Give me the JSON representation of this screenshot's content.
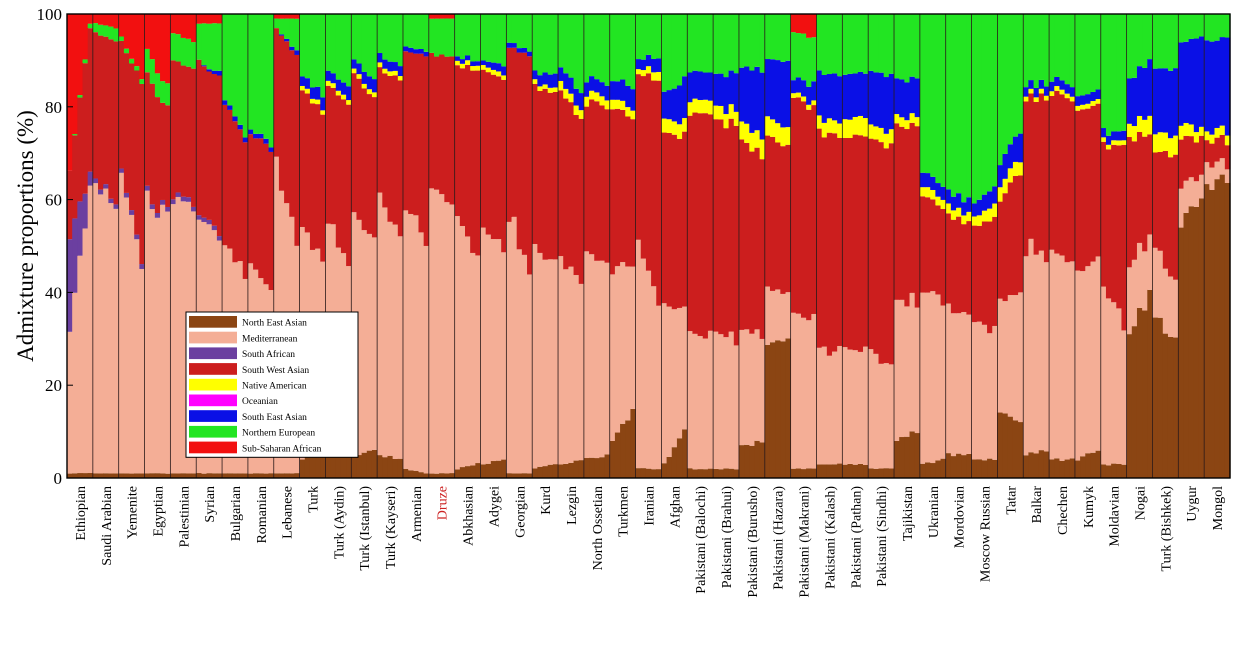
{
  "chart_data": {
    "type": "stacked-bar",
    "ylabel": "Admixture proportions (%)",
    "ylim": [
      0,
      100
    ],
    "yticks": [
      0,
      20,
      40,
      60,
      80,
      100
    ],
    "legend_position": "lower-left",
    "components": [
      {
        "name": "North East Asian",
        "color": "#8B4513"
      },
      {
        "name": "Mediterranean",
        "color": "#F4AE96"
      },
      {
        "name": "South African",
        "color": "#6B3FA0"
      },
      {
        "name": "South West Asian",
        "color": "#CC1E1E"
      },
      {
        "name": "Native American",
        "color": "#FFFF00"
      },
      {
        "name": "Oceanian",
        "color": "#FF00FF"
      },
      {
        "name": "South East Asian",
        "color": "#0A10E6"
      },
      {
        "name": "Northern European",
        "color": "#22E522"
      },
      {
        "name": "Sub-Saharan African",
        "color": "#F21010"
      }
    ],
    "populations": [
      {
        "name": "Ethiopian",
        "label_color": "#000000",
        "start": [
          1,
          30,
          20,
          15,
          0,
          0,
          0,
          0,
          34
        ],
        "end": [
          1,
          63,
          3,
          30,
          0,
          0,
          0,
          1,
          2
        ]
      },
      {
        "name": "Saudi Arabian",
        "label_color": "#000000",
        "start": [
          1,
          63,
          1,
          31,
          0,
          0,
          0,
          2,
          2
        ],
        "end": [
          1,
          58,
          1,
          34,
          0,
          0,
          0,
          3,
          3
        ]
      },
      {
        "name": "Yemenite",
        "label_color": "#000000",
        "start": [
          1,
          64,
          1,
          28,
          0,
          0,
          0,
          1,
          5
        ],
        "end": [
          1,
          45,
          1,
          38,
          0,
          0,
          0,
          1,
          14
        ]
      },
      {
        "name": "Egyptian",
        "label_color": "#000000",
        "start": [
          1,
          60,
          1,
          25,
          0,
          0,
          0,
          5,
          8
        ],
        "end": [
          1,
          55,
          1,
          22,
          0,
          0,
          0,
          5,
          16
        ]
      },
      {
        "name": "Palestinian",
        "label_color": "#000000",
        "start": [
          1,
          58,
          1,
          30,
          0,
          0,
          0,
          6,
          4
        ],
        "end": [
          1,
          58,
          1,
          28,
          0,
          0,
          0,
          6,
          6
        ]
      },
      {
        "name": "Syrian",
        "label_color": "#000000",
        "start": [
          1,
          55,
          1,
          33,
          0,
          0,
          0,
          8,
          2
        ],
        "end": [
          1,
          50,
          1,
          34,
          0,
          0,
          1,
          11,
          2
        ]
      },
      {
        "name": "Bulgarian",
        "label_color": "#000000",
        "start": [
          1,
          50,
          0,
          30,
          0,
          0,
          1,
          18,
          0
        ],
        "end": [
          1,
          42,
          0,
          30,
          0,
          0,
          1,
          26,
          0
        ]
      },
      {
        "name": "Romanian",
        "label_color": "#000000",
        "start": [
          1,
          45,
          0,
          28,
          0,
          0,
          1,
          25,
          0
        ],
        "end": [
          1,
          40,
          0,
          30,
          0,
          0,
          1,
          28,
          0
        ]
      },
      {
        "name": "Lebanese",
        "label_color": "#000000",
        "start": [
          1,
          68,
          0,
          28,
          0,
          0,
          0,
          2,
          1
        ],
        "end": [
          1,
          50,
          0,
          40,
          0,
          0,
          1,
          7,
          1
        ]
      },
      {
        "name": "Turk",
        "label_color": "#000000",
        "start": [
          4,
          50,
          0,
          30,
          1,
          0,
          2,
          13,
          0
        ],
        "end": [
          6,
          40,
          0,
          32,
          1,
          0,
          3,
          18,
          0
        ]
      },
      {
        "name": "Turk (Aydin)",
        "label_color": "#000000",
        "start": [
          5,
          50,
          0,
          30,
          1,
          0,
          2,
          12,
          0
        ],
        "end": [
          7,
          40,
          0,
          33,
          1,
          0,
          3,
          16,
          0
        ]
      },
      {
        "name": "Turk (Istanbul)",
        "label_color": "#000000",
        "start": [
          5,
          52,
          0,
          30,
          1,
          0,
          2,
          10,
          0
        ],
        "end": [
          6,
          45,
          0,
          31,
          1,
          0,
          3,
          14,
          0
        ]
      },
      {
        "name": "Turk (Kayseri)",
        "label_color": "#000000",
        "start": [
          5,
          55,
          0,
          28,
          1,
          0,
          2,
          9,
          0
        ],
        "end": [
          4,
          48,
          0,
          34,
          1,
          0,
          2,
          11,
          0
        ]
      },
      {
        "name": "Armenian",
        "label_color": "#000000",
        "start": [
          2,
          58,
          0,
          32,
          0,
          0,
          1,
          7,
          0
        ],
        "end": [
          1,
          48,
          0,
          42,
          0,
          0,
          1,
          8,
          0
        ]
      },
      {
        "name": "Druze",
        "label_color": "#CC2222",
        "start": [
          1,
          60,
          0,
          30,
          0,
          0,
          0,
          8,
          1
        ],
        "end": [
          1,
          58,
          0,
          32,
          0,
          0,
          0,
          8,
          1
        ]
      },
      {
        "name": "Abkhasian",
        "label_color": "#000000",
        "start": [
          2,
          55,
          0,
          32,
          1,
          0,
          1,
          9,
          0
        ],
        "end": [
          3,
          45,
          0,
          40,
          1,
          0,
          1,
          10,
          0
        ]
      },
      {
        "name": "Adygei",
        "label_color": "#000000",
        "start": [
          3,
          50,
          0,
          35,
          1,
          0,
          1,
          10,
          0
        ],
        "end": [
          4,
          45,
          0,
          37,
          1,
          0,
          2,
          11,
          0
        ]
      },
      {
        "name": "Georgian",
        "label_color": "#000000",
        "start": [
          1,
          55,
          0,
          37,
          0,
          0,
          1,
          6,
          0
        ],
        "end": [
          1,
          45,
          0,
          45,
          0,
          0,
          1,
          8,
          0
        ]
      },
      {
        "name": "Kurd",
        "label_color": "#000000",
        "start": [
          2,
          48,
          0,
          35,
          1,
          0,
          2,
          12,
          0
        ],
        "end": [
          3,
          42,
          0,
          38,
          1,
          0,
          3,
          13,
          0
        ]
      },
      {
        "name": "Lezgin",
        "label_color": "#000000",
        "start": [
          3,
          45,
          0,
          35,
          2,
          0,
          3,
          12,
          0
        ],
        "end": [
          4,
          38,
          0,
          35,
          2,
          0,
          4,
          17,
          0
        ]
      },
      {
        "name": "North Ossetian",
        "label_color": "#000000",
        "start": [
          4,
          45,
          0,
          32,
          2,
          0,
          3,
          14,
          0
        ],
        "end": [
          5,
          42,
          0,
          33,
          2,
          0,
          3,
          15,
          0
        ]
      },
      {
        "name": "Turkmen",
        "label_color": "#000000",
        "start": [
          8,
          38,
          0,
          34,
          2,
          0,
          4,
          14,
          0
        ],
        "end": [
          15,
          30,
          0,
          32,
          2,
          0,
          5,
          16,
          0
        ]
      },
      {
        "name": "Iranian",
        "label_color": "#000000",
        "start": [
          2,
          50,
          0,
          36,
          1,
          0,
          2,
          9,
          0
        ],
        "end": [
          2,
          35,
          0,
          48,
          2,
          0,
          3,
          10,
          0
        ]
      },
      {
        "name": "Afghan",
        "label_color": "#000000",
        "start": [
          3,
          35,
          0,
          36,
          3,
          0,
          6,
          17,
          0
        ],
        "end": [
          10,
          28,
          0,
          36,
          3,
          0,
          9,
          14,
          0
        ]
      },
      {
        "name": "Pakistani (Balochi)",
        "label_color": "#000000",
        "start": [
          2,
          30,
          0,
          46,
          3,
          0,
          6,
          13,
          0
        ],
        "end": [
          2,
          28,
          0,
          48,
          3,
          0,
          6,
          13,
          0
        ]
      },
      {
        "name": "Pakistani (Brahui)",
        "label_color": "#000000",
        "start": [
          2,
          30,
          0,
          45,
          3,
          0,
          7,
          13,
          0
        ],
        "end": [
          2,
          28,
          0,
          46,
          3,
          0,
          8,
          13,
          0
        ]
      },
      {
        "name": "Pakistani (Burusho)",
        "label_color": "#000000",
        "start": [
          7,
          25,
          0,
          40,
          4,
          0,
          12,
          12,
          0
        ],
        "end": [
          8,
          22,
          0,
          40,
          4,
          0,
          14,
          12,
          0
        ]
      },
      {
        "name": "Pakistani (Hazara)",
        "label_color": "#000000",
        "start": [
          30,
          12,
          0,
          32,
          4,
          0,
          12,
          10,
          0
        ],
        "end": [
          30,
          10,
          0,
          32,
          4,
          0,
          14,
          10,
          0
        ]
      },
      {
        "name": "Pakistani (Makrani)",
        "label_color": "#000000",
        "start": [
          2,
          35,
          0,
          45,
          1,
          0,
          3,
          10,
          4
        ],
        "end": [
          2,
          32,
          0,
          46,
          1,
          0,
          4,
          10,
          5
        ]
      },
      {
        "name": "Pakistani (Kalash)",
        "label_color": "#000000",
        "start": [
          3,
          25,
          0,
          46,
          3,
          0,
          10,
          13,
          0
        ],
        "end": [
          3,
          25,
          0,
          46,
          3,
          0,
          10,
          13,
          0
        ]
      },
      {
        "name": "Pakistani (Pathan)",
        "label_color": "#000000",
        "start": [
          3,
          25,
          0,
          45,
          4,
          0,
          10,
          13,
          0
        ],
        "end": [
          3,
          25,
          0,
          45,
          4,
          0,
          10,
          13,
          0
        ]
      },
      {
        "name": "Pakistani (Sindhi)",
        "label_color": "#000000",
        "start": [
          2,
          25,
          0,
          46,
          3,
          0,
          12,
          12,
          0
        ],
        "end": [
          2,
          22,
          0,
          48,
          3,
          0,
          12,
          13,
          0
        ]
      },
      {
        "name": "Tajikistan",
        "label_color": "#000000",
        "start": [
          8,
          30,
          0,
          38,
          2,
          0,
          8,
          14,
          0
        ],
        "end": [
          10,
          28,
          0,
          38,
          2,
          0,
          8,
          14,
          0
        ]
      },
      {
        "name": "Ukranian",
        "label_color": "#000000",
        "start": [
          3,
          38,
          0,
          20,
          2,
          0,
          3,
          34,
          0
        ],
        "end": [
          4,
          35,
          0,
          20,
          2,
          0,
          3,
          36,
          0
        ]
      },
      {
        "name": "Mordovian",
        "label_color": "#000000",
        "start": [
          5,
          32,
          0,
          20,
          2,
          0,
          3,
          38,
          0
        ],
        "end": [
          5,
          30,
          0,
          20,
          2,
          0,
          3,
          40,
          0
        ]
      },
      {
        "name": "Moscow Russian",
        "label_color": "#000000",
        "start": [
          4,
          30,
          0,
          20,
          2,
          0,
          3,
          41,
          0
        ],
        "end": [
          4,
          28,
          0,
          24,
          3,
          0,
          4,
          37,
          0
        ]
      },
      {
        "name": "Tatar",
        "label_color": "#000000",
        "start": [
          14,
          25,
          0,
          22,
          3,
          0,
          5,
          31,
          0
        ],
        "end": [
          12,
          28,
          0,
          26,
          3,
          0,
          6,
          25,
          0
        ]
      },
      {
        "name": "Balkar",
        "label_color": "#000000",
        "start": [
          5,
          45,
          0,
          32,
          1,
          0,
          2,
          15,
          0
        ],
        "end": [
          6,
          42,
          0,
          34,
          1,
          0,
          2,
          15,
          0
        ]
      },
      {
        "name": "Chechen",
        "label_color": "#000000",
        "start": [
          4,
          45,
          0,
          34,
          1,
          0,
          2,
          14,
          0
        ],
        "end": [
          4,
          42,
          0,
          36,
          1,
          0,
          2,
          15,
          0
        ]
      },
      {
        "name": "Kumyk",
        "label_color": "#000000",
        "start": [
          4,
          42,
          0,
          34,
          1,
          0,
          2,
          17,
          0
        ],
        "end": [
          6,
          40,
          0,
          34,
          1,
          0,
          2,
          17,
          0
        ]
      },
      {
        "name": "Moldavian",
        "label_color": "#000000",
        "start": [
          3,
          38,
          0,
          30,
          1,
          0,
          2,
          26,
          0
        ],
        "end": [
          3,
          30,
          0,
          38,
          1,
          0,
          2,
          26,
          0
        ]
      },
      {
        "name": "Nogai",
        "label_color": "#000000",
        "start": [
          30,
          15,
          0,
          28,
          3,
          0,
          10,
          14,
          0
        ],
        "end": [
          40,
          12,
          0,
          22,
          4,
          0,
          12,
          10,
          0
        ]
      },
      {
        "name": "Turk (Bishkek)",
        "label_color": "#000000",
        "start": [
          35,
          15,
          0,
          20,
          4,
          0,
          14,
          12,
          0
        ],
        "end": [
          30,
          12,
          0,
          28,
          4,
          0,
          14,
          12,
          0
        ]
      },
      {
        "name": "Uygur",
        "label_color": "#000000",
        "start": [
          55,
          8,
          0,
          10,
          3,
          0,
          18,
          6,
          0
        ],
        "end": [
          60,
          5,
          0,
          8,
          2,
          0,
          20,
          5,
          0
        ]
      },
      {
        "name": "Mongol",
        "label_color": "#000000",
        "start": [
          62,
          5,
          0,
          5,
          2,
          0,
          20,
          6,
          0
        ],
        "end": [
          65,
          3,
          0,
          5,
          2,
          0,
          20,
          5,
          0
        ]
      }
    ]
  }
}
